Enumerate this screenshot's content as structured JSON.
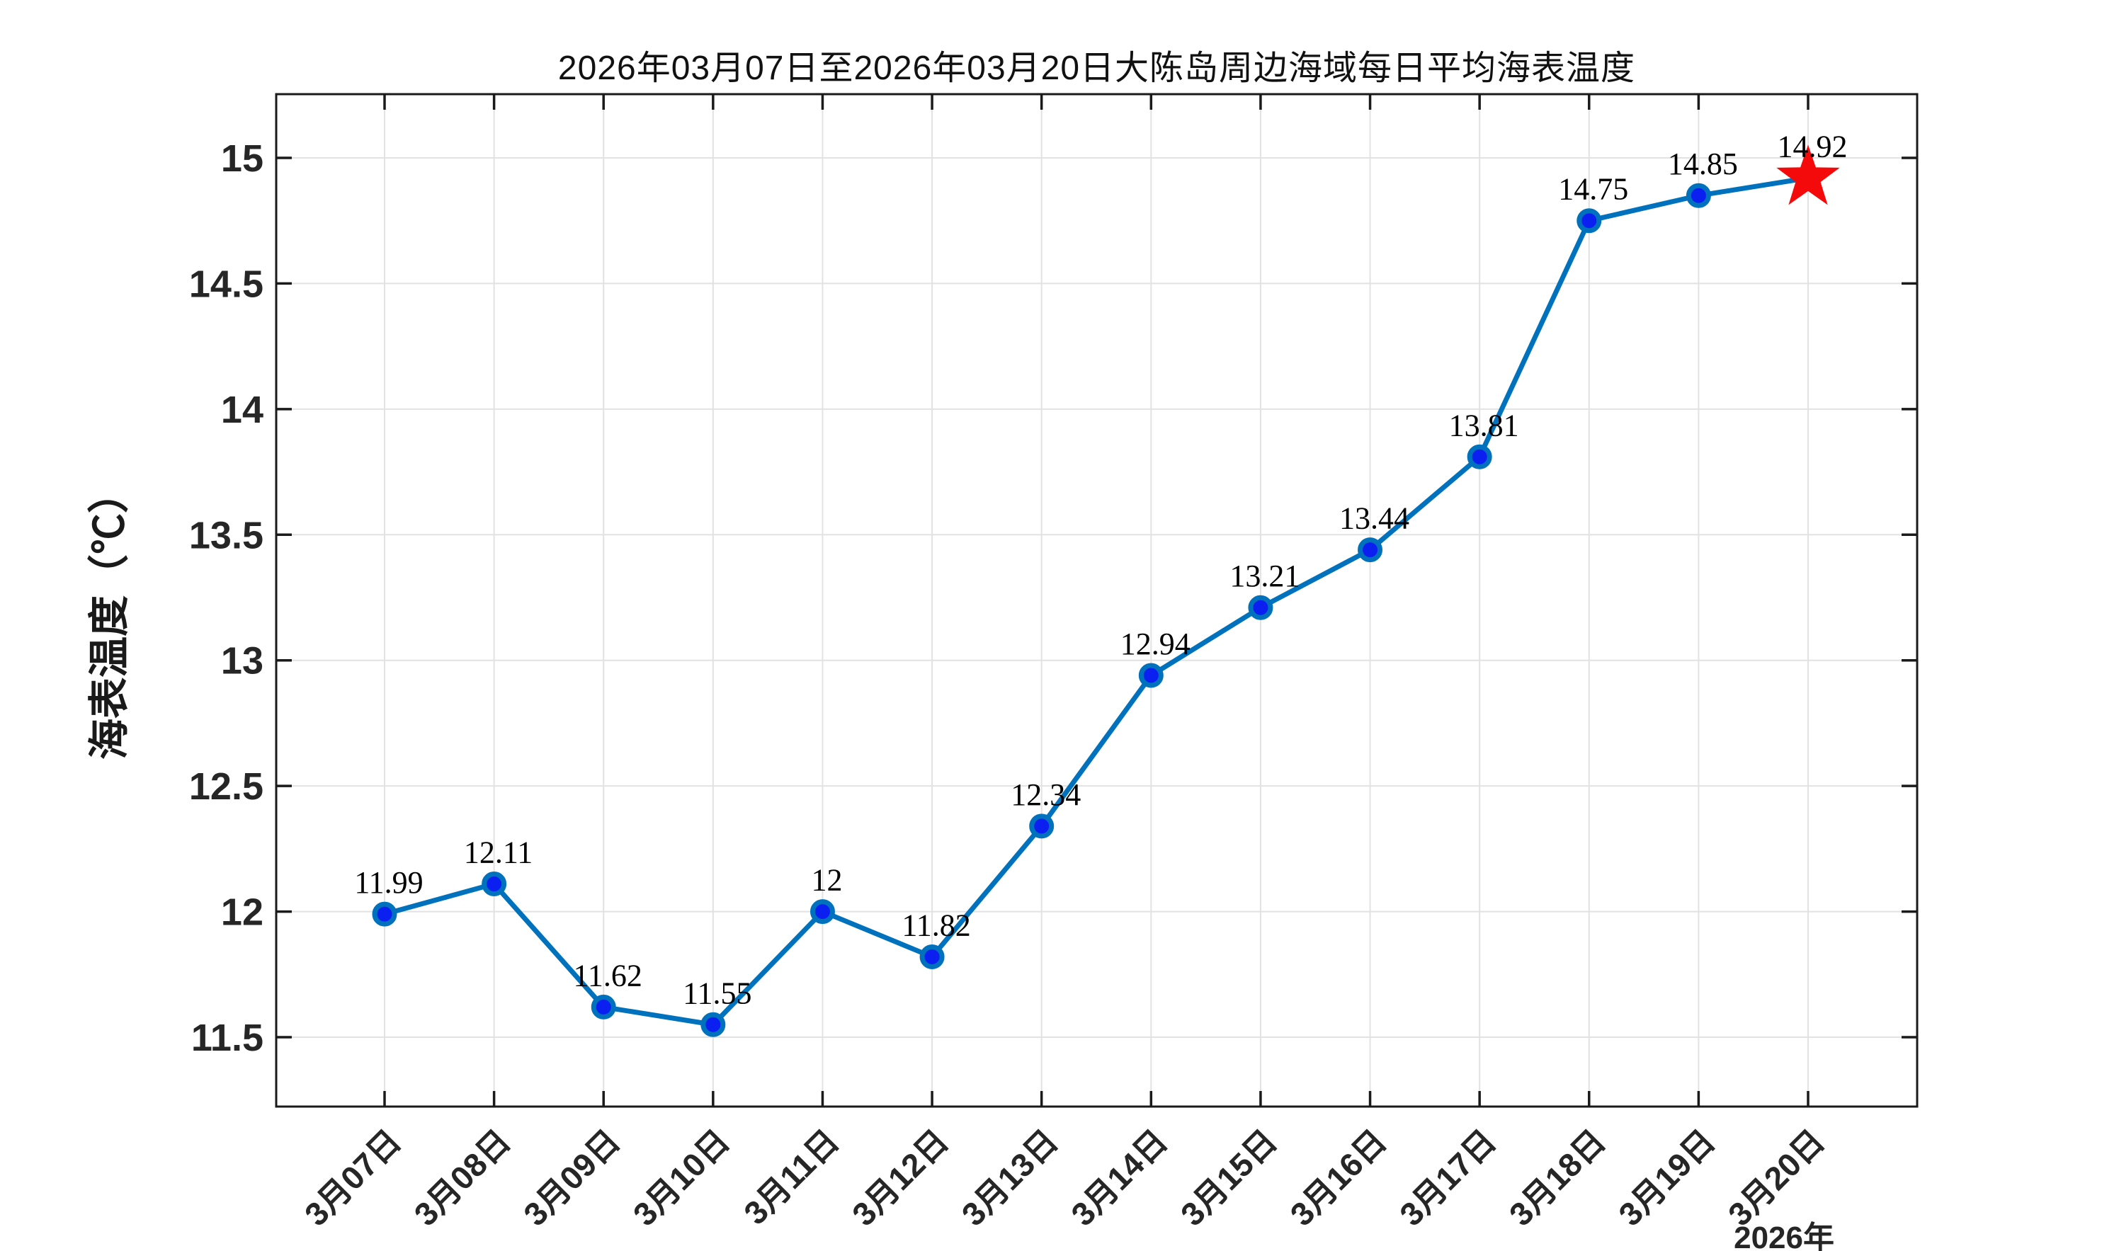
{
  "title": "2026年03月07日至2026年03月20日大陈岛周边海域每日平均海表温度",
  "y_axis_label": "海表温度（℃）",
  "x_axis_year_label": "2026年",
  "chart_data": {
    "type": "line",
    "title": "2026年03月07日至2026年03月20日大陈岛周边海域每日平均海表温度",
    "xlabel": "2026年",
    "ylabel": "海表温度（℃）",
    "categories": [
      "3月07日",
      "3月08日",
      "3月09日",
      "3月10日",
      "3月11日",
      "3月12日",
      "3月13日",
      "3月14日",
      "3月15日",
      "3月16日",
      "3月17日",
      "3月18日",
      "3月19日",
      "3月20日"
    ],
    "values": [
      11.99,
      12.11,
      11.62,
      11.55,
      12,
      11.82,
      12.34,
      12.94,
      13.21,
      13.44,
      13.81,
      14.75,
      14.85,
      14.92
    ],
    "point_labels": [
      "11.99",
      "12.11",
      "11.62",
      "11.55",
      "12",
      "11.82",
      "12.34",
      "12.94",
      "13.21",
      "13.44",
      "13.81",
      "14.75",
      "14.85",
      "14.92"
    ],
    "yticks": [
      11.5,
      12,
      12.5,
      13,
      13.5,
      14,
      14.5,
      15
    ],
    "ylim": [
      11.2,
      15.25
    ],
    "grid": true,
    "legend_position": "none",
    "line_color": "#0072BD",
    "marker_face_color": "#0b1ff0",
    "marker_edge_color": "#0072BD",
    "last_point_marker": "red-star",
    "star_color": "#f40a0a",
    "grid_color": "#e2e2e2",
    "axis_color": "#1a1a1a",
    "tick_label_color": "#262626"
  }
}
